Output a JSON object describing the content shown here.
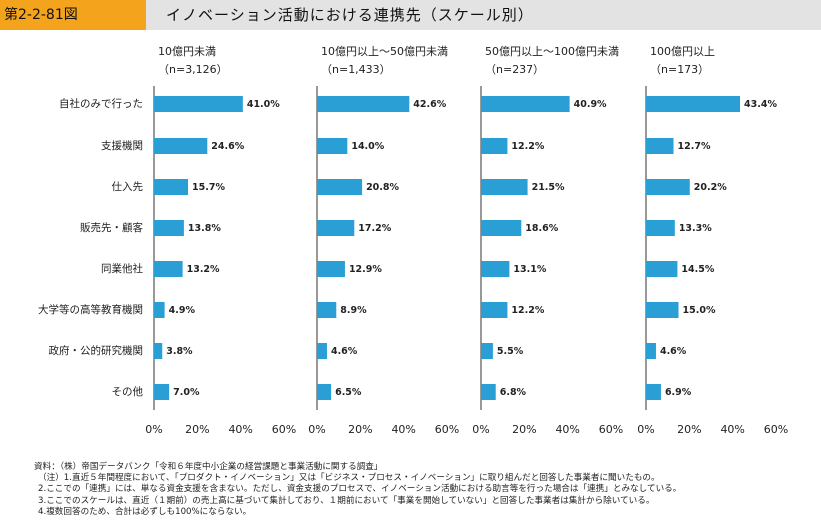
{
  "figure": {
    "number": "第2-2-81図",
    "title": "イノベーション活動における連携先（スケール別）"
  },
  "colors": {
    "accent": "#f4a31c",
    "bar": "#2a9fd6",
    "title_bg": "#e3e3e3"
  },
  "chart_data": {
    "type": "bar",
    "orientation": "horizontal",
    "categories": [
      "自社のみで行った",
      "支援機関",
      "仕入先",
      "販売先・顧客",
      "同業他社",
      "大学等の高等教育機関",
      "政府・公的研究機関",
      "その他"
    ],
    "xlim": [
      0,
      60
    ],
    "xticks": [
      "0%",
      "20%",
      "40%",
      "60%"
    ],
    "value_suffix": "%",
    "panels": [
      {
        "label_line1": "10億円未満",
        "label_line2": "（n=3,126）",
        "values": [
          41.0,
          24.6,
          15.7,
          13.8,
          13.2,
          4.9,
          3.8,
          7.0
        ]
      },
      {
        "label_line1": "10億円以上～50億円未満",
        "label_line2": "（n=1,433）",
        "values": [
          42.6,
          14.0,
          20.8,
          17.2,
          12.9,
          8.9,
          4.6,
          6.5
        ]
      },
      {
        "label_line1": "50億円以上～100億円未満",
        "label_line2": "（n=237）",
        "values": [
          40.9,
          12.2,
          21.5,
          18.6,
          13.1,
          12.2,
          5.5,
          6.8
        ]
      },
      {
        "label_line1": "100億円以上",
        "label_line2": "（n=173）",
        "values": [
          43.4,
          12.7,
          20.2,
          13.3,
          14.5,
          15.0,
          4.6,
          6.9
        ]
      }
    ]
  },
  "notes": [
    "資料：（株）帝国データバンク「令和６年度中小企業の経営課題と事業活動に関する調査」",
    "（注）1.直近５年間程度において、「プロダクト・イノベーション」又は「ビジネス・プロセス・イノベーション」に取り組んだと回答した事業者に聞いたもの。",
    "2.ここでの「連携」には、単なる資金支援を含まない。ただし、資金支援のプロセスで、イノベーション活動における助言等を行った場合は「連携」とみなしている。",
    "3.ここでのスケールは、直近（１期前）の売上高に基づいて集計しており、１期前において「事業を開始していない」と回答した事業者は集計から除いている。",
    "4.複数回答のため、合計は必ずしも100%にならない。"
  ]
}
